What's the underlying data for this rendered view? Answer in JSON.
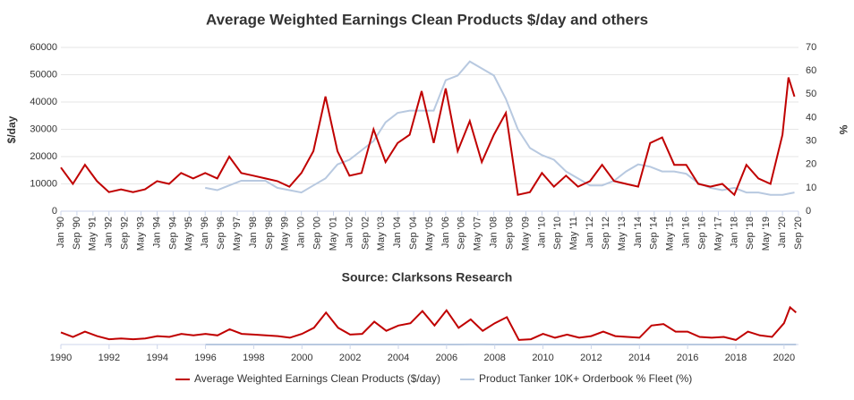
{
  "chart_data": {
    "type": "line",
    "title": "Average Weighted Earnings Clean Products $/day and others",
    "subtitle": "Source: Clarksons Research",
    "y_label": "$/day",
    "y2_label": "%",
    "xlim": [
      "1990-01",
      "2020-09"
    ],
    "xticks": [
      {
        "value": "1990-01",
        "label": "Jan '90"
      },
      {
        "value": "1990-09",
        "label": "Sep '90"
      },
      {
        "value": "1991-05",
        "label": "May '91"
      },
      {
        "value": "1992-01",
        "label": "Jan '92"
      },
      {
        "value": "1992-09",
        "label": "Sep '92"
      },
      {
        "value": "1993-05",
        "label": "May '93"
      },
      {
        "value": "1994-01",
        "label": "Jan '94"
      },
      {
        "value": "1994-09",
        "label": "Sep '94"
      },
      {
        "value": "1995-05",
        "label": "May '95"
      },
      {
        "value": "1996-01",
        "label": "Jan '96"
      },
      {
        "value": "1996-09",
        "label": "Sep '96"
      },
      {
        "value": "1997-05",
        "label": "May '97"
      },
      {
        "value": "1998-01",
        "label": "Jan '98"
      },
      {
        "value": "1998-09",
        "label": "Sep '98"
      },
      {
        "value": "1999-05",
        "label": "May '99"
      },
      {
        "value": "2000-01",
        "label": "Jan '00"
      },
      {
        "value": "2000-09",
        "label": "Sep '00"
      },
      {
        "value": "2001-05",
        "label": "May '01"
      },
      {
        "value": "2002-01",
        "label": "Jan '02"
      },
      {
        "value": "2002-09",
        "label": "Sep '02"
      },
      {
        "value": "2003-05",
        "label": "May '03"
      },
      {
        "value": "2004-01",
        "label": "Jan '04"
      },
      {
        "value": "2004-09",
        "label": "Sep '04"
      },
      {
        "value": "2005-05",
        "label": "May '05"
      },
      {
        "value": "2006-01",
        "label": "Jan '06"
      },
      {
        "value": "2006-09",
        "label": "Sep '06"
      },
      {
        "value": "2007-05",
        "label": "May '07"
      },
      {
        "value": "2008-01",
        "label": "Jan '08"
      },
      {
        "value": "2008-09",
        "label": "Sep '08"
      },
      {
        "value": "2009-05",
        "label": "May '09"
      },
      {
        "value": "2010-01",
        "label": "Jan '10"
      },
      {
        "value": "2010-09",
        "label": "Sep '10"
      },
      {
        "value": "2011-05",
        "label": "May '11"
      },
      {
        "value": "2012-01",
        "label": "Jan '12"
      },
      {
        "value": "2012-09",
        "label": "Sep '12"
      },
      {
        "value": "2013-05",
        "label": "May '13"
      },
      {
        "value": "2014-01",
        "label": "Jan '14"
      },
      {
        "value": "2014-09",
        "label": "Sep '14"
      },
      {
        "value": "2015-05",
        "label": "May '15"
      },
      {
        "value": "2016-01",
        "label": "Jan '16"
      },
      {
        "value": "2016-09",
        "label": "Sep '16"
      },
      {
        "value": "2017-05",
        "label": "May '17"
      },
      {
        "value": "2018-01",
        "label": "Jan '18"
      },
      {
        "value": "2018-09",
        "label": "Sep '18"
      },
      {
        "value": "2019-05",
        "label": "May '19"
      },
      {
        "value": "2020-01",
        "label": "Jan '20"
      },
      {
        "value": "2020-09",
        "label": "Sep '20"
      }
    ],
    "ylim": [
      0,
      60000
    ],
    "yticks": [
      0,
      10000,
      20000,
      30000,
      40000,
      50000,
      60000
    ],
    "y2lim": [
      0,
      70
    ],
    "y2ticks": [
      0,
      10,
      20,
      30,
      40,
      50,
      60,
      70
    ],
    "grid": true,
    "series": [
      {
        "name": "Average Weighted Earnings Clean Products ($/day)",
        "color": "#c00000",
        "x": [
          "1990-01",
          "1990-07",
          "1991-01",
          "1991-07",
          "1992-01",
          "1992-07",
          "1993-01",
          "1993-07",
          "1994-01",
          "1994-07",
          "1995-01",
          "1995-07",
          "1996-01",
          "1996-07",
          "1997-01",
          "1997-07",
          "1998-01",
          "1998-07",
          "1999-01",
          "1999-07",
          "2000-01",
          "2000-07",
          "2001-01",
          "2001-07",
          "2002-01",
          "2002-07",
          "2003-01",
          "2003-07",
          "2004-01",
          "2004-07",
          "2005-01",
          "2005-07",
          "2006-01",
          "2006-07",
          "2007-01",
          "2007-07",
          "2008-01",
          "2008-07",
          "2009-01",
          "2009-07",
          "2010-01",
          "2010-07",
          "2011-01",
          "2011-07",
          "2012-01",
          "2012-07",
          "2013-01",
          "2013-07",
          "2014-01",
          "2014-07",
          "2015-01",
          "2015-07",
          "2016-01",
          "2016-07",
          "2017-01",
          "2017-07",
          "2018-01",
          "2018-07",
          "2019-01",
          "2019-07",
          "2020-01",
          "2020-04",
          "2020-07"
        ],
        "values": [
          16000,
          10000,
          17000,
          11000,
          7000,
          8000,
          7000,
          8000,
          11000,
          10000,
          14000,
          12000,
          14000,
          12000,
          20000,
          14000,
          13000,
          12000,
          11000,
          9000,
          14000,
          22000,
          42000,
          22000,
          13000,
          14000,
          30000,
          18000,
          25000,
          28000,
          44000,
          25000,
          45000,
          22000,
          33000,
          18000,
          28000,
          36000,
          6000,
          7000,
          14000,
          9000,
          13000,
          9000,
          11000,
          17000,
          11000,
          10000,
          9000,
          25000,
          27000,
          17000,
          17000,
          10000,
          9000,
          10000,
          6000,
          17000,
          12000,
          10000,
          28000,
          49000,
          42000
        ]
      },
      {
        "name": "Product Tanker 10K+ Orderbook % Fleet (%)",
        "color": "#b8c9e0",
        "axis": "y2",
        "x": [
          "1996-01",
          "1996-07",
          "1997-01",
          "1997-07",
          "1998-01",
          "1998-07",
          "1999-01",
          "1999-07",
          "2000-01",
          "2000-07",
          "2001-01",
          "2001-07",
          "2002-01",
          "2002-07",
          "2003-01",
          "2003-07",
          "2004-01",
          "2004-07",
          "2005-01",
          "2005-07",
          "2006-01",
          "2006-07",
          "2007-01",
          "2007-07",
          "2008-01",
          "2008-07",
          "2009-01",
          "2009-07",
          "2010-01",
          "2010-07",
          "2011-01",
          "2011-07",
          "2012-01",
          "2012-07",
          "2013-01",
          "2013-07",
          "2014-01",
          "2014-07",
          "2015-01",
          "2015-07",
          "2016-01",
          "2016-07",
          "2017-01",
          "2017-07",
          "2018-01",
          "2018-07",
          "2019-01",
          "2019-07",
          "2020-01",
          "2020-07"
        ],
        "values": [
          10,
          9,
          11,
          13,
          13,
          13,
          10,
          9,
          8,
          11,
          14,
          20,
          22,
          26,
          30,
          38,
          42,
          43,
          43,
          43,
          56,
          58,
          64,
          61,
          58,
          48,
          35,
          27,
          24,
          22,
          17,
          14,
          11,
          11,
          13,
          17,
          20,
          19,
          17,
          17,
          16,
          12,
          10,
          9,
          10,
          8,
          8,
          7,
          7,
          8
        ]
      }
    ],
    "navigator": {
      "xlim": [
        1990,
        2020.6
      ],
      "xticks": [
        1990,
        1992,
        1994,
        1996,
        1998,
        2000,
        2002,
        2004,
        2006,
        2008,
        2010,
        2012,
        2014,
        2016,
        2018,
        2020
      ]
    },
    "legend": "bottom"
  }
}
